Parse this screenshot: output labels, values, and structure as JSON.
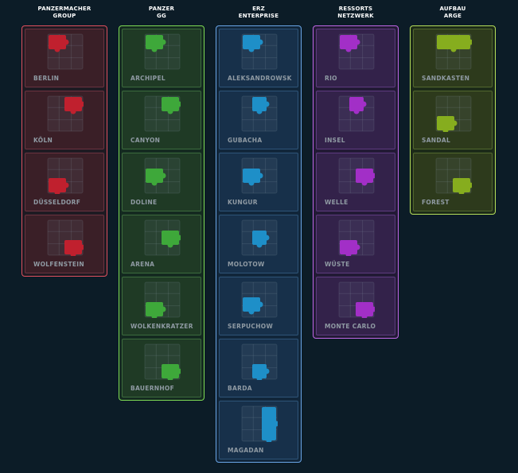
{
  "columns": [
    {
      "title_line1": "PANZERMACHER",
      "title_line2": "GROUP",
      "accent": "#e0505f",
      "tile_bg": "#3a1f27",
      "tile_border": "#6b3340",
      "group_bg": "#1e1a22",
      "piece": "#c0202e",
      "tiles": [
        {
          "label": "BERLIN",
          "piece_position": "top-left"
        },
        {
          "label": "KÖLN",
          "piece_position": "top-right"
        },
        {
          "label": "DÜSSELDORF",
          "piece_position": "bottom-left"
        },
        {
          "label": "WOLFENSTEIN",
          "piece_position": "bottom-right"
        }
      ]
    },
    {
      "title_line1": "PANZER",
      "title_line2": "GG",
      "accent": "#7fdc55",
      "tile_bg": "#1f3a25",
      "tile_border": "#3c6b3d",
      "group_bg": "#142a20",
      "piece": "#3ea83a",
      "tiles": [
        {
          "label": "ARCHIPEL",
          "piece_position": "top-left"
        },
        {
          "label": "CANYON",
          "piece_position": "top-right"
        },
        {
          "label": "DOLINE",
          "piece_position": "middle-left"
        },
        {
          "label": "ARENA",
          "piece_position": "middle-right"
        },
        {
          "label": "WOLKENKRATZER",
          "piece_position": "bottom-left"
        },
        {
          "label": "BAUERNHOF",
          "piece_position": "bottom-right"
        }
      ]
    },
    {
      "title_line1": "ERZ",
      "title_line2": "ENTERPRISE",
      "accent": "#6aa6e8",
      "tile_bg": "#17304a",
      "tile_border": "#2e5478",
      "group_bg": "#11263a",
      "piece": "#1e8fc8",
      "tiles": [
        {
          "label": "ALEKSANDROWSK",
          "piece_position": "top-left"
        },
        {
          "label": "GUBACHA",
          "piece_position": "top-center"
        },
        {
          "label": "KUNGUR",
          "piece_position": "middle-left"
        },
        {
          "label": "MOLOTOW",
          "piece_position": "middle-center"
        },
        {
          "label": "SERPUCHOW",
          "piece_position": "lower-left"
        },
        {
          "label": "BARDA",
          "piece_position": "bottom-center"
        },
        {
          "label": "MAGADAN",
          "piece_position": "right-column"
        }
      ]
    },
    {
      "title_line1": "RESSORTS",
      "title_line2": "NETZWERK",
      "accent": "#c167e8",
      "tile_bg": "#33224a",
      "tile_border": "#5e3b80",
      "group_bg": "#221a35",
      "piece": "#a22fc7",
      "tiles": [
        {
          "label": "RIO",
          "piece_position": "top-left"
        },
        {
          "label": "INSEL",
          "piece_position": "top-center"
        },
        {
          "label": "WELLE",
          "piece_position": "middle-right"
        },
        {
          "label": "WÜSTE",
          "piece_position": "bottom-left"
        },
        {
          "label": "MONTE CARLO",
          "piece_position": "bottom-right"
        }
      ]
    },
    {
      "title_line1": "AUFBAU",
      "title_line2": "ARGE",
      "accent": "#b7e05a",
      "tile_bg": "#2d3a1c",
      "tile_border": "#52682e",
      "group_bg": "#1c2a18",
      "piece": "#86ad1e",
      "tiles": [
        {
          "label": "SANDKASTEN",
          "piece_position": "top"
        },
        {
          "label": "SANDAL",
          "piece_position": "bottom-left"
        },
        {
          "label": "FOREST",
          "piece_position": "bottom-right"
        }
      ]
    }
  ]
}
